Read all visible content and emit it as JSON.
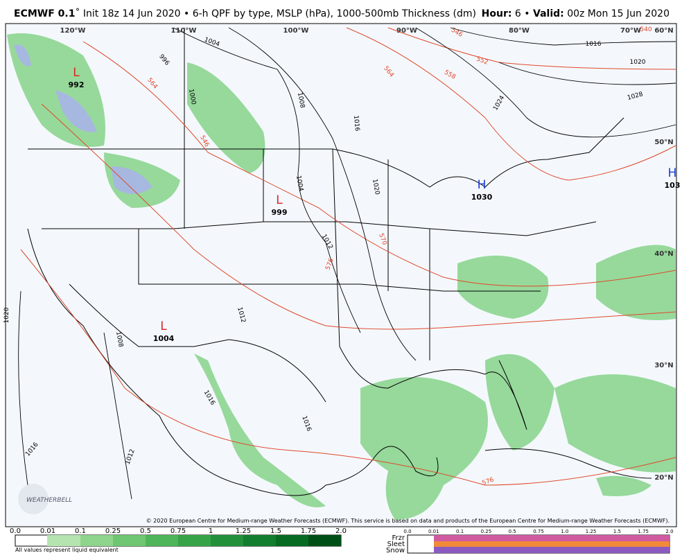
{
  "header": {
    "model": "ECMWF 0.1",
    "description": "˚ Init 18z 14 Jun 2020 • 6-h QPF by type, MSLP (hPa), 1000-500mb Thickness (dm)",
    "hour_label": "Hour:",
    "hour": "6 •",
    "valid_label": "Valid:",
    "valid": "00z Mon 15 Jun 2020"
  },
  "map": {
    "lon_labels": [
      "120°W",
      "110°W",
      "100°W",
      "90°W",
      "80°W",
      "70°W"
    ],
    "lat_labels": [
      "60°N",
      "50°N",
      "40°N",
      "30°N",
      "20°N"
    ],
    "centers": [
      {
        "kind": "L",
        "pressure": "992"
      },
      {
        "kind": "L",
        "pressure": "999"
      },
      {
        "kind": "H",
        "pressure": "1030"
      },
      {
        "kind": "L",
        "pressure": "1004"
      },
      {
        "kind": "H",
        "pressure": "103"
      }
    ],
    "isobar_labels": [
      "1004",
      "996",
      "1000",
      "1008",
      "1016",
      "1020",
      "1016",
      "1024",
      "1028",
      "1004",
      "1012",
      "1012",
      "1020",
      "1016",
      "1016",
      "1012",
      "1008",
      "1016",
      "1020"
    ],
    "thickness_labels": [
      "546",
      "552",
      "558",
      "564",
      "564",
      "570",
      "576",
      "576",
      "546",
      "540"
    ],
    "credit": "© 2020 European Centre for Medium-range Weather Forecasts (ECMWF). This service is based on data and products of the European Centre for Medium-range Weather Forecasts (ECMWF)."
  },
  "legend": {
    "rain_ticks": [
      "0.0",
      "0.01",
      "0.1",
      "0.25",
      "0.5",
      "0.75",
      "1",
      "1.25",
      "1.5",
      "1.75",
      "2.0"
    ],
    "note": "All values represent liquid equivalent",
    "types": [
      "Frzr",
      "Sleet",
      "Snow"
    ],
    "winter_ticks": [
      "0.0",
      "0.01",
      "0.1",
      "0.25",
      "0.5",
      "0.75",
      "1.0",
      "1.25",
      "1.5",
      "1.75",
      "2.0"
    ]
  }
}
